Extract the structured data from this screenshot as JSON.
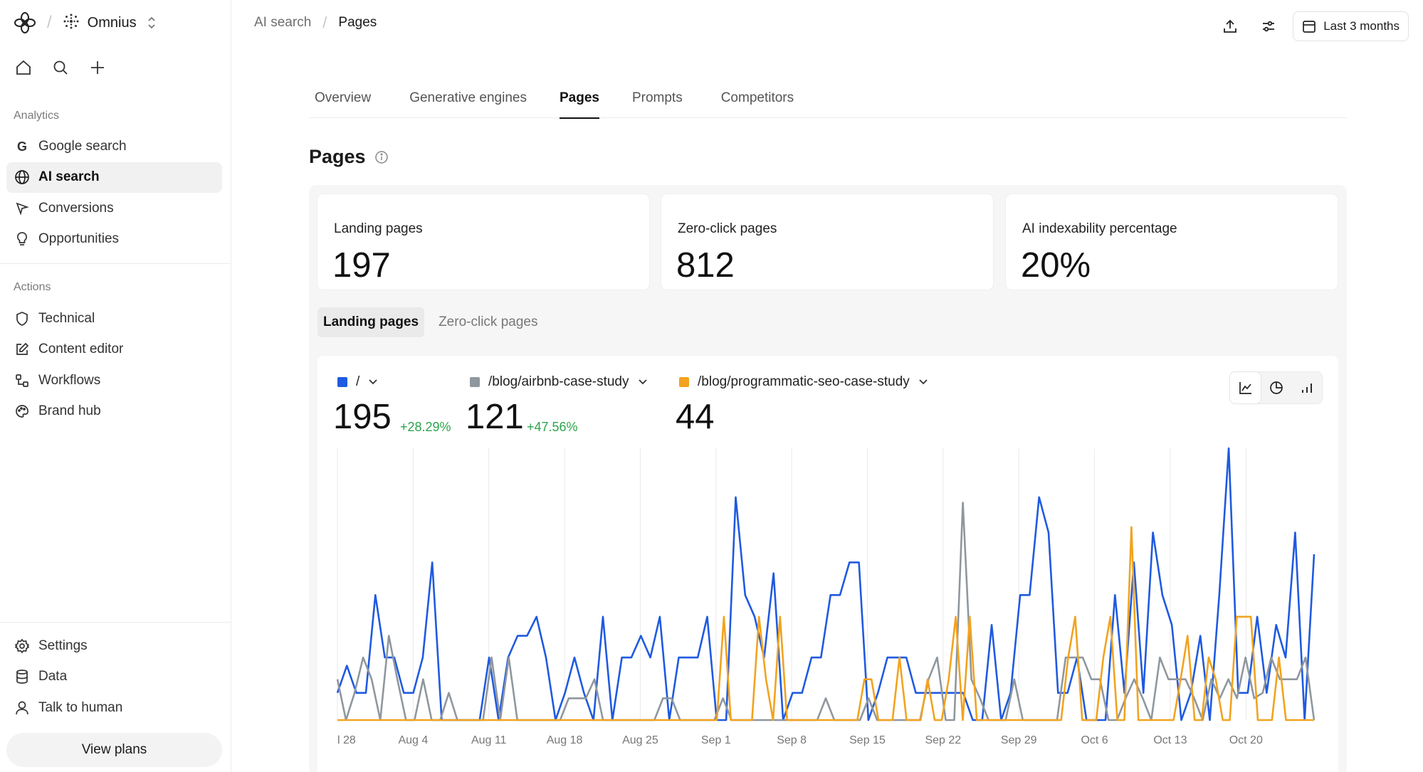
{
  "workspace": {
    "name": "Omnius"
  },
  "sidebar": {
    "analytics_label": "Analytics",
    "analytics_items": [
      {
        "label": "Google search",
        "icon": "google-icon",
        "active": false
      },
      {
        "label": "AI search",
        "icon": "globe-icon",
        "active": true
      },
      {
        "label": "Conversions",
        "icon": "cursor-icon",
        "active": false
      },
      {
        "label": "Opportunities",
        "icon": "lightbulb-icon",
        "active": false
      }
    ],
    "actions_label": "Actions",
    "actions_items": [
      {
        "label": "Technical",
        "icon": "shield-icon"
      },
      {
        "label": "Content editor",
        "icon": "edit-icon"
      },
      {
        "label": "Workflows",
        "icon": "workflow-icon"
      },
      {
        "label": "Brand hub",
        "icon": "palette-icon"
      }
    ],
    "bottom_items": [
      {
        "label": "Settings",
        "icon": "gear-icon"
      },
      {
        "label": "Data",
        "icon": "database-icon"
      },
      {
        "label": "Talk to human",
        "icon": "user-icon"
      }
    ],
    "view_plans": "View plans"
  },
  "header": {
    "breadcrumb": [
      "AI search",
      "Pages"
    ],
    "date_range": "Last 3 months"
  },
  "tabs": [
    {
      "label": "Overview",
      "active": false
    },
    {
      "label": "Generative engines",
      "active": false
    },
    {
      "label": "Pages",
      "active": true
    },
    {
      "label": "Prompts",
      "active": false
    },
    {
      "label": "Competitors",
      "active": false
    }
  ],
  "section_title": "Pages",
  "stats": [
    {
      "label": "Landing pages",
      "value": "197"
    },
    {
      "label": "Zero-click pages",
      "value": "812"
    },
    {
      "label": "AI indexability percentage",
      "value": "20%"
    }
  ],
  "segment": {
    "options": [
      "Landing pages",
      "Zero-click pages"
    ],
    "active": 0
  },
  "series_summary": [
    {
      "name": "/",
      "color": "#1f5ae0",
      "value": "195",
      "delta": "+28.29%"
    },
    {
      "name": "/blog/airbnb-case-study",
      "color": "#8f979e",
      "value": "121",
      "delta": "+47.56%"
    },
    {
      "name": "/blog/programmatic-seo-case-study",
      "color": "#f2a31f",
      "value": "44",
      "delta": ""
    }
  ],
  "chart_data": {
    "type": "line",
    "x_tick_labels": [
      "l 28",
      "Aug 4",
      "Aug 11",
      "Aug 18",
      "Aug 25",
      "Sep 1",
      "Sep 8",
      "Sep 15",
      "Sep 22",
      "Sep 29",
      "Oct 6",
      "Oct 13",
      "Oct 20"
    ],
    "grid": true,
    "ylim": [
      0,
      10
    ],
    "series": [
      {
        "name": "/",
        "color": "#1f5ae0",
        "values": [
          1,
          2,
          1,
          1,
          4.6,
          2.3,
          2.3,
          1,
          1,
          2.3,
          5.8,
          0,
          0,
          0,
          0,
          0,
          2.3,
          0,
          2.3,
          3.1,
          3.1,
          3.8,
          2.3,
          0,
          1,
          2.3,
          1,
          0,
          3.8,
          0,
          2.3,
          2.3,
          3.1,
          2.3,
          3.8,
          0,
          2.3,
          2.3,
          2.3,
          3.8,
          0,
          0,
          8.2,
          4.6,
          3.8,
          2.3,
          5.4,
          0,
          1,
          1,
          2.3,
          2.3,
          4.6,
          4.6,
          5.8,
          5.8,
          0,
          1,
          2.3,
          2.3,
          2.3,
          1,
          1,
          1,
          1,
          1,
          1,
          0,
          0,
          3.5,
          0,
          1,
          4.6,
          4.6,
          8.2,
          6.9,
          1,
          1,
          2.3,
          0,
          0,
          0,
          4.6,
          1,
          5.8,
          1,
          6.9,
          4.6,
          3.5,
          0,
          1,
          3.1,
          0,
          4.6,
          10,
          1,
          1,
          3.8,
          1,
          3.5,
          2.3,
          6.9,
          0,
          6.1
        ]
      },
      {
        "name": "/blog/airbnb-case-study",
        "color": "#8f979e",
        "values": [
          1.5,
          0,
          1,
          2.3,
          1.5,
          0,
          3.1,
          1.5,
          0,
          0,
          1.5,
          0,
          0,
          1,
          0,
          0,
          0,
          0,
          2.3,
          0,
          2.3,
          0,
          0,
          0,
          0,
          0,
          0,
          0.8,
          0.8,
          0.8,
          1.5,
          0,
          0,
          0,
          0,
          0,
          0,
          0,
          0.8,
          0.8,
          0,
          0,
          0,
          0,
          0,
          0.8,
          0,
          0,
          0,
          0,
          0,
          0,
          0,
          0,
          0,
          0,
          0,
          0.8,
          0,
          0,
          0,
          0,
          0.8,
          0,
          0,
          0,
          0,
          0,
          0,
          1.5,
          2.3,
          0,
          0,
          8,
          1.5,
          0.8,
          0,
          0,
          0,
          1.5,
          0,
          0,
          0,
          0,
          0,
          2.3,
          2.3,
          2.3,
          1.5,
          1.5,
          0,
          0,
          0.8,
          1.5,
          0.8,
          0,
          2.3,
          1.5,
          1.5,
          1.5,
          0.8,
          0,
          1.5,
          0.8,
          1.5,
          0.8,
          2.3,
          0.8,
          1,
          2.3,
          1.5,
          1.5,
          1.5,
          2.3,
          0
        ]
      },
      {
        "name": "/blog/programmatic-seo-case-study",
        "color": "#f2a31f",
        "values": [
          0,
          0,
          0,
          0,
          0,
          0,
          0,
          0,
          0,
          0,
          0,
          0,
          0,
          0,
          0,
          0,
          0,
          0,
          0,
          0,
          0,
          0,
          0,
          0,
          0,
          0,
          0,
          0,
          0,
          0,
          0,
          0,
          0,
          0,
          0,
          0,
          0,
          0,
          0,
          0,
          0,
          0,
          0,
          0,
          0,
          0,
          0,
          0,
          0,
          0,
          0,
          0,
          0,
          0,
          0,
          3.8,
          0,
          0,
          0,
          0,
          3.8,
          1.5,
          0,
          3.8,
          0,
          0,
          0,
          0,
          0,
          0,
          0,
          0,
          0,
          0,
          0,
          1.5,
          1.5,
          0,
          0,
          0,
          2.3,
          0,
          0,
          0,
          1.5,
          0,
          0,
          1.5,
          3.8,
          0,
          3.8,
          0,
          0,
          0,
          0,
          0,
          0,
          0,
          0,
          0,
          0,
          0,
          0,
          0,
          2.3,
          3.8,
          0,
          0,
          0,
          2.3,
          3.8,
          0,
          0,
          7.1,
          0,
          0,
          0,
          0,
          0,
          0,
          1.5,
          3.1,
          0,
          0,
          2.3,
          1.5,
          0,
          0,
          3.8,
          3.8,
          3.8,
          0,
          0,
          0,
          2.3,
          0,
          0,
          0,
          0,
          0
        ]
      }
    ]
  }
}
